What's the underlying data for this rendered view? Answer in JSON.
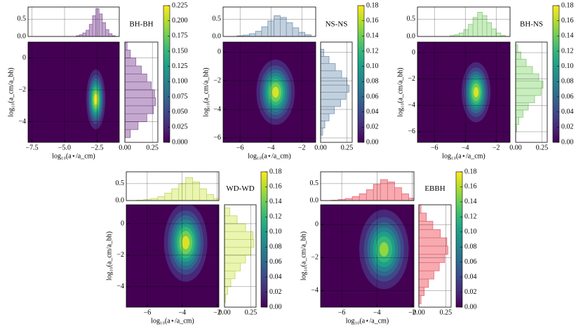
{
  "chart_data": [
    {
      "type": "joint_kde",
      "title": "BH-BH",
      "xlabel": "log₁₀(a⋆/a_cm)",
      "ylabel": "log₁₀(a_cm/a_bh)",
      "xlim": [
        -7.8,
        -0.8
      ],
      "ylim": [
        -5.3,
        1.0
      ],
      "xticks": [
        {
          "value": -7.5,
          "label": "−7.5"
        },
        {
          "value": -5.0,
          "label": "−5.0"
        },
        {
          "value": -2.5,
          "label": "−2.5"
        }
      ],
      "yticks": [
        0,
        {
          "value": -2,
          "label": "−2"
        },
        {
          "value": -4,
          "label": "−4"
        }
      ],
      "kde": {
        "x": -2.6,
        "y": -2.6,
        "sx": 0.35,
        "sy": 0.9,
        "peak": 0.22
      },
      "top": {
        "bins": [
          -4.1,
          -3.85,
          -3.6,
          -3.35,
          -3.1,
          -2.85,
          -2.6,
          -2.35,
          -2.1,
          -1.85,
          -1.6,
          -1.35,
          -1.1
        ],
        "counts": [
          0.02,
          0.05,
          0.1,
          0.18,
          0.35,
          0.6,
          0.8,
          0.65,
          0.4,
          0.2,
          0.08,
          0.02
        ],
        "ylim": [
          0,
          0.85
        ],
        "yticks": [
          {
            "value": 0,
            "label": "0.0"
          },
          {
            "value": 0.5,
            "label": "0.5"
          }
        ],
        "color": "#c5a8cf",
        "edge": "#8b6a9b"
      },
      "right": {
        "bins": [
          -5.0,
          -4.5,
          -4.0,
          -3.5,
          -3.0,
          -2.5,
          -2.0,
          -1.5,
          -1.0,
          -0.5,
          0.0,
          0.5,
          1.0
        ],
        "counts": [
          0.05,
          0.12,
          0.2,
          0.26,
          0.28,
          0.27,
          0.24,
          0.2,
          0.15,
          0.1,
          0.05,
          0.02
        ],
        "xlim": [
          0,
          0.3
        ],
        "xticks": [
          {
            "value": 0,
            "label": "0.00"
          },
          {
            "value": 0.25,
            "label": "0.25"
          }
        ]
      },
      "colorbar": {
        "clim": [
          0,
          0.225
        ],
        "ticks": [
          {
            "value": 0,
            "label": "0.000"
          },
          {
            "value": 0.025,
            "label": "0.025"
          },
          {
            "value": 0.05,
            "label": "0.050"
          },
          {
            "value": 0.075,
            "label": "0.075"
          },
          {
            "value": 0.1,
            "label": "0.100"
          },
          {
            "value": 0.125,
            "label": "0.125"
          },
          {
            "value": 0.15,
            "label": "0.150"
          },
          {
            "value": 0.175,
            "label": "0.175"
          },
          {
            "value": 0.2,
            "label": "0.200"
          },
          {
            "value": 0.225,
            "label": "0.225"
          }
        ]
      },
      "grid": true
    },
    {
      "type": "joint_kde",
      "title": "NS-NS",
      "xlabel": "log₁₀(a⋆/a_cm)",
      "ylabel": "log₁₀(a_cm/a_bh)",
      "xlim": [
        -7.1,
        -1.1
      ],
      "ylim": [
        -6.3,
        0.7
      ],
      "xticks": [
        {
          "value": -6,
          "label": "−6"
        },
        {
          "value": -4,
          "label": "−4"
        },
        {
          "value": -2,
          "label": "−2"
        }
      ],
      "yticks": [
        0,
        {
          "value": -2,
          "label": "−2"
        },
        {
          "value": -4,
          "label": "−4"
        },
        {
          "value": -6,
          "label": "−6"
        }
      ],
      "kde": {
        "x": -3.7,
        "y": -2.8,
        "sx": 0.6,
        "sy": 1.1,
        "peak": 0.17
      },
      "top": {
        "bins": [
          -6.2,
          -5.8,
          -5.4,
          -5.0,
          -4.6,
          -4.2,
          -3.8,
          -3.4,
          -3.0,
          -2.6,
          -2.2,
          -1.8,
          -1.4
        ],
        "counts": [
          0.02,
          0.04,
          0.08,
          0.15,
          0.28,
          0.45,
          0.6,
          0.55,
          0.4,
          0.25,
          0.12,
          0.05
        ],
        "ylim": [
          0,
          0.85
        ],
        "yticks": [
          {
            "value": 0,
            "label": "0.0"
          },
          {
            "value": 0.5,
            "label": "0.5"
          }
        ],
        "color": "#c2d0de",
        "edge": "#7a97b3"
      },
      "right": {
        "bins": [
          -5.8,
          -5.3,
          -4.8,
          -4.3,
          -3.8,
          -3.3,
          -2.8,
          -2.3,
          -1.8,
          -1.3,
          -0.8,
          -0.3,
          0.2
        ],
        "counts": [
          0.02,
          0.04,
          0.08,
          0.13,
          0.19,
          0.24,
          0.27,
          0.25,
          0.2,
          0.14,
          0.08,
          0.03
        ],
        "xlim": [
          0,
          0.3
        ],
        "xticks": [
          {
            "value": 0,
            "label": "0.00"
          },
          {
            "value": 0.25,
            "label": "0.25"
          }
        ]
      },
      "colorbar": {
        "clim": [
          0,
          0.18
        ],
        "ticks": [
          {
            "value": 0,
            "label": "0.00"
          },
          {
            "value": 0.02,
            "label": "0.02"
          },
          {
            "value": 0.04,
            "label": "0.04"
          },
          {
            "value": 0.06,
            "label": "0.06"
          },
          {
            "value": 0.08,
            "label": "0.08"
          },
          {
            "value": 0.1,
            "label": "0.10"
          },
          {
            "value": 0.12,
            "label": "0.12"
          },
          {
            "value": 0.14,
            "label": "0.14"
          },
          {
            "value": 0.16,
            "label": "0.16"
          },
          {
            "value": 0.18,
            "label": "0.18"
          }
        ]
      },
      "grid": true
    },
    {
      "type": "joint_kde",
      "title": "BH-NS",
      "xlabel": "log₁₀(a⋆/a_cm)",
      "ylabel": "log₁₀(a_cm/a_bh)",
      "xlim": [
        -7.1,
        -1.1
      ],
      "ylim": [
        -6.8,
        0.8
      ],
      "xticks": [
        {
          "value": -6,
          "label": "−6"
        },
        {
          "value": -4,
          "label": "−4"
        },
        {
          "value": -2,
          "label": "−2"
        }
      ],
      "yticks": [
        0,
        {
          "value": -2,
          "label": "−2"
        },
        {
          "value": -4,
          "label": "−4"
        },
        {
          "value": -6,
          "label": "−6"
        }
      ],
      "kde": {
        "x": -3.3,
        "y": -3.0,
        "sx": 0.45,
        "sy": 1.1,
        "peak": 0.17
      },
      "top": {
        "bins": [
          -5.0,
          -4.7,
          -4.4,
          -4.1,
          -3.8,
          -3.5,
          -3.2,
          -2.9,
          -2.6,
          -2.3,
          -2.0,
          -1.7,
          -1.4
        ],
        "counts": [
          0.02,
          0.05,
          0.1,
          0.2,
          0.35,
          0.55,
          0.7,
          0.6,
          0.4,
          0.22,
          0.1,
          0.03
        ],
        "ylim": [
          0,
          0.85
        ],
        "yticks": [
          {
            "value": 0,
            "label": "0.0"
          },
          {
            "value": 0.5,
            "label": "0.5"
          }
        ],
        "color": "#c9ecc0",
        "edge": "#8dc97e"
      },
      "right": {
        "bins": [
          -6.0,
          -5.45,
          -4.9,
          -4.35,
          -3.8,
          -3.25,
          -2.7,
          -2.15,
          -1.6,
          -1.05,
          -0.5,
          0.05,
          0.6
        ],
        "counts": [
          0.01,
          0.03,
          0.07,
          0.12,
          0.18,
          0.24,
          0.26,
          0.22,
          0.16,
          0.1,
          0.05,
          0.02
        ],
        "xlim": [
          0,
          0.3
        ],
        "xticks": [
          {
            "value": 0,
            "label": "0.00"
          },
          {
            "value": 0.25,
            "label": "0.25"
          }
        ]
      },
      "colorbar": {
        "clim": [
          0,
          0.18
        ],
        "ticks": [
          {
            "value": 0,
            "label": "0.00"
          },
          {
            "value": 0.02,
            "label": "0.02"
          },
          {
            "value": 0.04,
            "label": "0.04"
          },
          {
            "value": 0.06,
            "label": "0.06"
          },
          {
            "value": 0.08,
            "label": "0.08"
          },
          {
            "value": 0.1,
            "label": "0.10"
          },
          {
            "value": 0.12,
            "label": "0.12"
          },
          {
            "value": 0.14,
            "label": "0.14"
          },
          {
            "value": 0.16,
            "label": "0.16"
          },
          {
            "value": 0.18,
            "label": "0.18"
          }
        ]
      },
      "grid": true
    },
    {
      "type": "joint_kde",
      "title": "WD-WD",
      "xlabel": "log₁₀(a⋆/a_cm)",
      "ylabel": "log₁₀(a_cm/a_bh)",
      "xlim": [
        -7.2,
        -1.9
      ],
      "ylim": [
        -5.3,
        1.2
      ],
      "xticks": [
        {
          "value": -6,
          "label": "−6"
        },
        {
          "value": -4,
          "label": "−4"
        },
        {
          "value": -2,
          "label": "−2"
        }
      ],
      "yticks": [
        0,
        {
          "value": -2,
          "label": "−2"
        },
        {
          "value": -4,
          "label": "−4"
        }
      ],
      "kde": {
        "x": -3.8,
        "y": -1.2,
        "sx": 0.6,
        "sy": 1.2,
        "peak": 0.17
      },
      "top": {
        "bins": [
          -6.6,
          -6.2,
          -5.8,
          -5.4,
          -5.0,
          -4.6,
          -4.2,
          -3.8,
          -3.4,
          -3.0,
          -2.6,
          -2.2,
          -1.8
        ],
        "counts": [
          0.01,
          0.03,
          0.06,
          0.12,
          0.22,
          0.35,
          0.5,
          0.68,
          0.55,
          0.35,
          0.18,
          0.06
        ],
        "ylim": [
          0,
          0.85
        ],
        "yticks": [
          {
            "value": 0,
            "label": "0.0"
          },
          {
            "value": 0.5,
            "label": "0.5"
          }
        ],
        "color": "#e9f5b0",
        "edge": "#c3d56a"
      },
      "right": {
        "bins": [
          -5.0,
          -4.5,
          -4.0,
          -3.5,
          -3.0,
          -2.5,
          -2.0,
          -1.5,
          -1.0,
          -0.5,
          0.0,
          0.5,
          1.0
        ],
        "counts": [
          0.01,
          0.03,
          0.06,
          0.1,
          0.15,
          0.2,
          0.25,
          0.28,
          0.27,
          0.2,
          0.12,
          0.05
        ],
        "xlim": [
          0,
          0.3
        ],
        "xticks": [
          {
            "value": 0,
            "label": "0.00"
          },
          {
            "value": 0.25,
            "label": "0.25"
          }
        ]
      },
      "colorbar": {
        "clim": [
          0,
          0.18
        ],
        "ticks": [
          {
            "value": 0,
            "label": "0.00"
          },
          {
            "value": 0.02,
            "label": "0.02"
          },
          {
            "value": 0.04,
            "label": "0.04"
          },
          {
            "value": 0.06,
            "label": "0.06"
          },
          {
            "value": 0.08,
            "label": "0.08"
          },
          {
            "value": 0.1,
            "label": "0.10"
          },
          {
            "value": 0.12,
            "label": "0.12"
          },
          {
            "value": 0.14,
            "label": "0.14"
          },
          {
            "value": 0.16,
            "label": "0.16"
          },
          {
            "value": 0.18,
            "label": "0.18"
          }
        ]
      },
      "grid": true
    },
    {
      "type": "joint_kde",
      "title": "EBBH",
      "xlabel": "log₁₀(a⋆/a_cm)",
      "ylabel": "log₁₀(a_cm/a_bh)",
      "xlim": [
        -7.2,
        -1.9
      ],
      "ylim": [
        -5.0,
        1.2
      ],
      "xticks": [
        {
          "value": -6,
          "label": "−6"
        },
        {
          "value": -4,
          "label": "−4"
        },
        {
          "value": -2,
          "label": "−2"
        }
      ],
      "yticks": [
        0,
        {
          "value": -2,
          "label": "−2"
        },
        {
          "value": -4,
          "label": "−4"
        }
      ],
      "kde": {
        "x": -3.6,
        "y": -1.5,
        "sx": 0.7,
        "sy": 1.2,
        "peak": 0.15
      },
      "top": {
        "bins": [
          -6.6,
          -6.2,
          -5.8,
          -5.4,
          -5.0,
          -4.6,
          -4.2,
          -3.8,
          -3.4,
          -3.0,
          -2.6,
          -2.2,
          -1.8
        ],
        "counts": [
          0.01,
          0.03,
          0.06,
          0.12,
          0.2,
          0.32,
          0.48,
          0.62,
          0.55,
          0.38,
          0.2,
          0.07
        ],
        "ylim": [
          0,
          0.85
        ],
        "yticks": [
          {
            "value": 0,
            "label": "0.0"
          },
          {
            "value": 0.5,
            "label": "0.5"
          }
        ],
        "color": "#f7aab0",
        "edge": "#e46a74"
      },
      "right": {
        "bins": [
          -4.8,
          -4.3,
          -3.8,
          -3.3,
          -2.8,
          -2.3,
          -1.8,
          -1.3,
          -0.8,
          -0.3,
          0.2,
          0.7,
          1.2
        ],
        "counts": [
          0.02,
          0.05,
          0.09,
          0.14,
          0.19,
          0.24,
          0.27,
          0.26,
          0.2,
          0.13,
          0.07,
          0.02
        ],
        "xlim": [
          0,
          0.3
        ],
        "xticks": [
          {
            "value": 0,
            "label": "0.00"
          },
          {
            "value": 0.25,
            "label": "0.25"
          }
        ]
      },
      "colorbar": {
        "clim": [
          0,
          0.18
        ],
        "ticks": [
          {
            "value": 0,
            "label": "0.00"
          },
          {
            "value": 0.02,
            "label": "0.02"
          },
          {
            "value": 0.04,
            "label": "0.04"
          },
          {
            "value": 0.06,
            "label": "0.06"
          },
          {
            "value": 0.08,
            "label": "0.08"
          },
          {
            "value": 0.1,
            "label": "0.10"
          },
          {
            "value": 0.12,
            "label": "0.12"
          },
          {
            "value": 0.14,
            "label": "0.14"
          },
          {
            "value": 0.16,
            "label": "0.16"
          },
          {
            "value": 0.18,
            "label": "0.18"
          }
        ]
      },
      "grid": true
    }
  ]
}
